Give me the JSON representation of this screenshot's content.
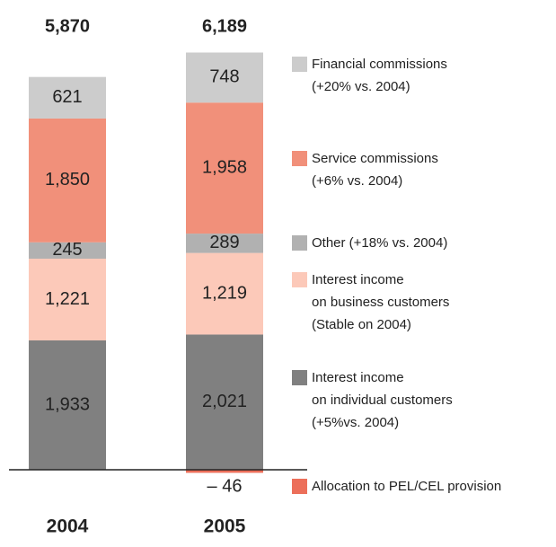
{
  "chart_data": {
    "type": "stacked_bar",
    "categories": [
      "2004",
      "2005"
    ],
    "totals": {
      "values": [
        5870,
        6189
      ],
      "value_labels": [
        "5,870",
        "6,189"
      ]
    },
    "series": [
      {
        "name": "Interest income\non individual customers\n(+5%vs. 2004)",
        "color": "#808080",
        "values": [
          1933,
          2021
        ],
        "value_labels": [
          "1,933",
          "2,021"
        ]
      },
      {
        "name": "Interest income\non business customers\n(Stable on 2004)",
        "color": "#fcc9b9",
        "values": [
          1221,
          1219
        ],
        "value_labels": [
          "1,221",
          "1,219"
        ]
      },
      {
        "name": "Other (+18% vs. 2004)",
        "color": "#b1b1b1",
        "values": [
          245,
          289
        ],
        "value_labels": [
          "245",
          "289"
        ]
      },
      {
        "name": "Service commissions\n(+6% vs. 2004)",
        "color": "#f1907a",
        "values": [
          1850,
          1958
        ],
        "value_labels": [
          "1,850",
          "1,958"
        ]
      },
      {
        "name": "Financial commissions\n(+20% vs. 2004)",
        "color": "#cccccc",
        "values": [
          621,
          748
        ],
        "value_labels": [
          "621",
          "748"
        ]
      },
      {
        "name": "Allocation to PEL/CEL provision",
        "color": "#ec6f5a",
        "values": [
          null,
          -46
        ],
        "value_labels": [
          null,
          "– 46"
        ]
      }
    ]
  }
}
